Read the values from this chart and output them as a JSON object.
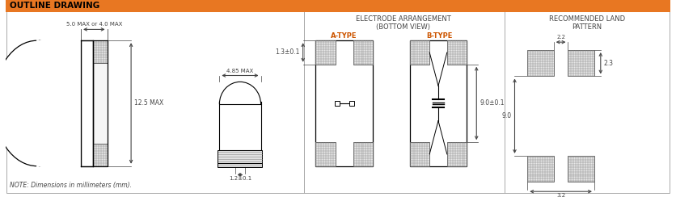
{
  "title": "OUTLINE DRAWING",
  "title_bg": "#E87722",
  "title_text_color": "#000000",
  "bg_color": "#FFFFFF",
  "line_color": "#000000",
  "dim_color": "#444444",
  "orange_label_color": "#CC5500",
  "blue_header_color": "#1155AA",
  "section2_title": "ELECTRODE ARRANGEMENT\n(BOTTOM VIEW)",
  "section3_title": "RECOMMENDED LAND\nPATTERN",
  "label_5max": "5.0 MAX or 4.0 MAX",
  "label_12max": "12.5 MAX",
  "label_485max": "4.85 MAX",
  "label_12pm": "1.2±0.1",
  "label_13pm": "1.3±0.1",
  "label_90pm": "9.0±0.1",
  "label_atype": "A-TYPE",
  "label_btype": "B-TYPE",
  "label_22": "2.2",
  "label_23": "2.3",
  "label_90": "9.0",
  "label_32": "3.2",
  "note": "NOTE: Dimensions in millimeters (mm)."
}
